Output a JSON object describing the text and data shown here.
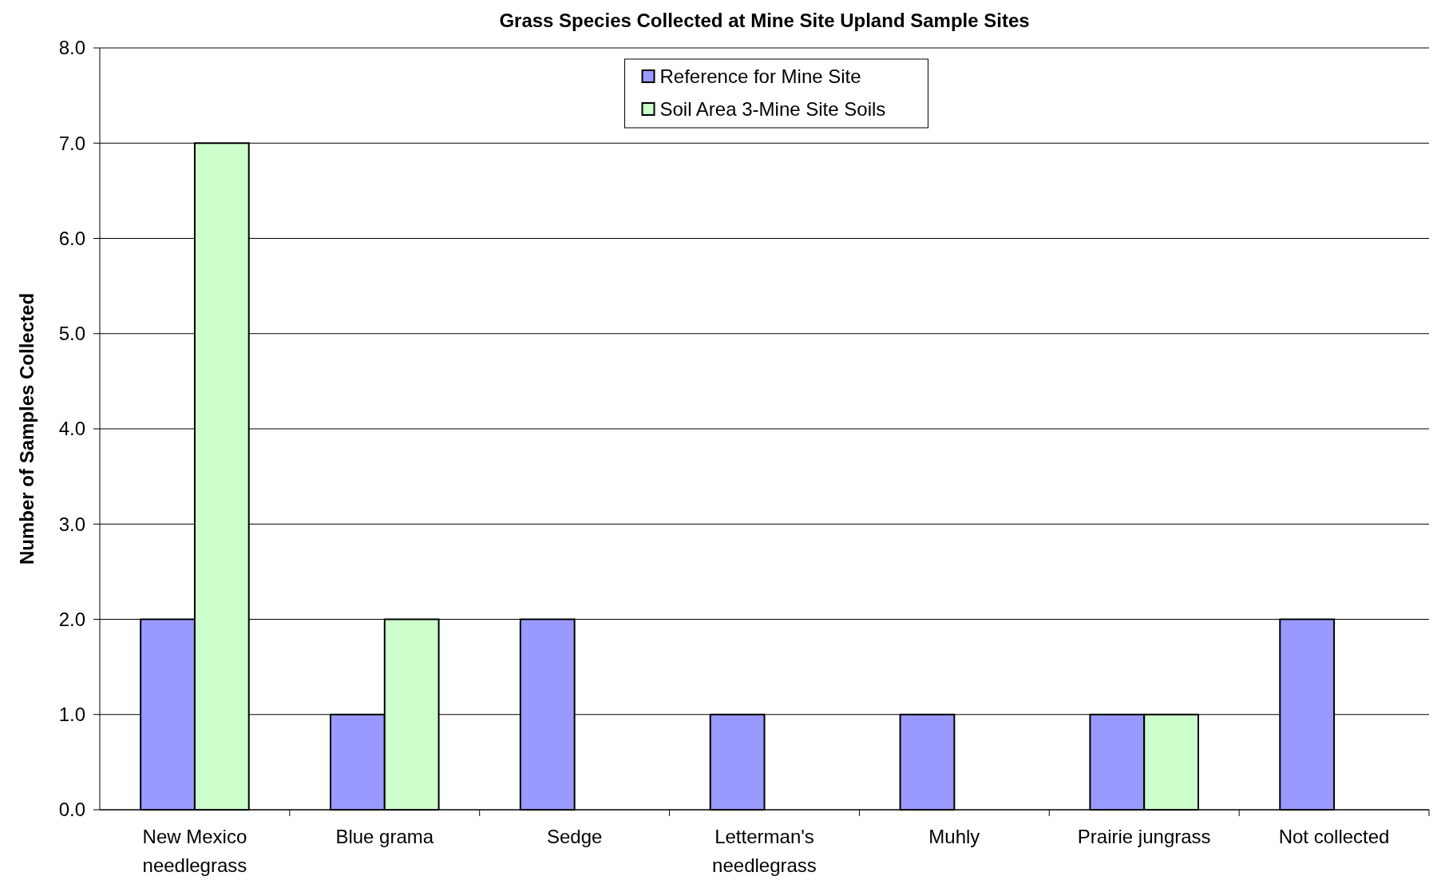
{
  "chart_data": {
    "type": "bar",
    "title": "Grass Species Collected at Mine Site Upland Sample Sites",
    "ylabel": "Number of Samples Collected",
    "categories": [
      "New Mexico needlegrass",
      "Blue grama",
      "Sedge",
      "Letterman's needlegrass",
      "Muhly",
      "Prairie jungrass",
      "Not collected"
    ],
    "series": [
      {
        "name": "Reference for Mine Site",
        "color": "#9999ff",
        "values": [
          2,
          1,
          2,
          1,
          1,
          1,
          2
        ]
      },
      {
        "name": "Soil Area 3-Mine Site Soils",
        "color": "#ccffcc",
        "values": [
          7,
          2,
          0,
          0,
          0,
          1,
          0
        ]
      }
    ],
    "ylim": [
      0,
      8
    ],
    "yticks": [
      {
        "value": 0,
        "label": "0.0"
      },
      {
        "value": 1,
        "label": "1.0"
      },
      {
        "value": 2,
        "label": "2.0"
      },
      {
        "value": 3,
        "label": "3.0"
      },
      {
        "value": 4,
        "label": "4.0"
      },
      {
        "value": 5,
        "label": "5.0"
      },
      {
        "value": 6,
        "label": "6.0"
      },
      {
        "value": 7,
        "label": "7.0"
      },
      {
        "value": 8,
        "label": "8.0"
      }
    ],
    "grid": "y",
    "legend": "top"
  }
}
